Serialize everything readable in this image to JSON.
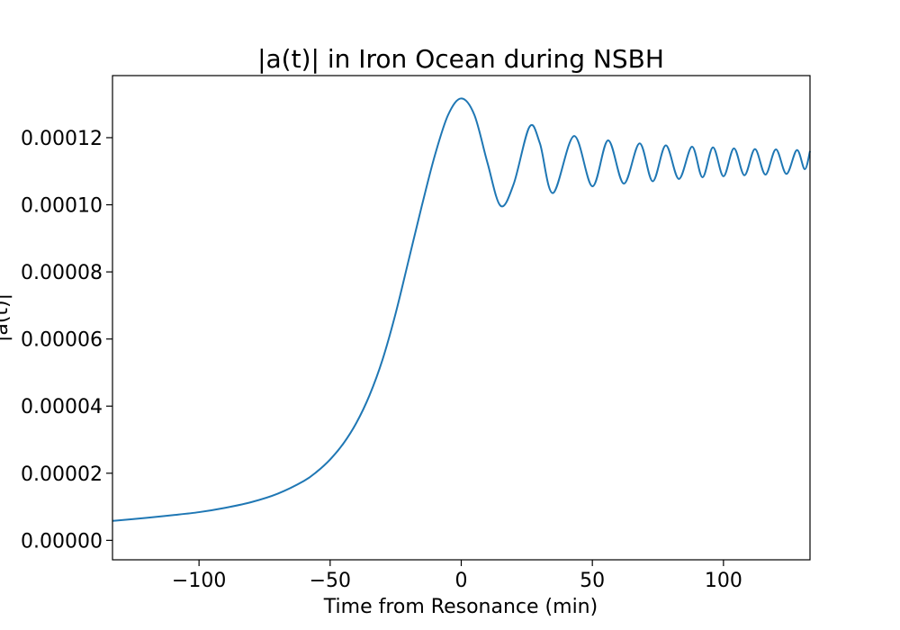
{
  "chart_data": {
    "type": "line",
    "title": "|a(t)| in Iron Ocean during NSBH",
    "xlabel": "Time from Resonance (min)",
    "ylabel": "|a(t)|",
    "xlim": [
      -133,
      133
    ],
    "ylim": [
      -5.8e-06,
      0.0001385
    ],
    "x_ticks": [
      -100,
      -50,
      0,
      50,
      100
    ],
    "x_tick_labels": [
      "−100",
      "−50",
      "0",
      "50",
      "100"
    ],
    "y_ticks": [
      0,
      2e-05,
      4e-05,
      6e-05,
      8e-05,
      0.0001,
      0.00012
    ],
    "y_tick_labels": [
      "0.00000",
      "0.00002",
      "0.00004",
      "0.00006",
      "0.00008",
      "0.00010",
      "0.00012"
    ],
    "grid": false,
    "color": "#1f77b4",
    "series": [
      {
        "name": "",
        "x": [
          -133,
          -120,
          -110,
          -100,
          -90,
          -80,
          -70,
          -60,
          -55,
          -50,
          -45,
          -40,
          -35,
          -30,
          -25,
          -20,
          -15,
          -10,
          -5,
          0,
          5,
          10,
          15,
          20,
          26,
          30,
          35,
          43,
          50,
          56,
          62,
          68,
          73,
          78,
          83,
          88,
          92,
          96,
          100,
          104,
          108,
          112,
          116,
          120,
          124,
          128,
          131,
          133
        ],
        "y": [
          5.8e-06,
          6.7e-06,
          7.5e-06,
          8.4e-06,
          9.7e-06,
          1.14e-05,
          1.39e-05,
          1.77e-05,
          2.05e-05,
          2.41e-05,
          2.88e-05,
          3.5e-05,
          4.32e-05,
          5.39e-05,
          6.77e-05,
          8.37e-05,
          9.98e-05,
          0.0001149,
          0.0001268,
          0.0001317,
          0.0001268,
          0.0001125,
          9.97e-05,
          0.0001062,
          0.0001232,
          0.0001183,
          0.0001035,
          0.0001205,
          0.0001055,
          0.0001192,
          0.0001063,
          0.0001183,
          0.000107,
          0.0001177,
          0.0001077,
          0.0001173,
          0.0001082,
          0.0001171,
          0.0001085,
          0.0001168,
          0.0001088,
          0.0001166,
          0.000109,
          0.0001165,
          0.0001092,
          0.0001163,
          0.0001106,
          0.000116
        ]
      }
    ]
  }
}
